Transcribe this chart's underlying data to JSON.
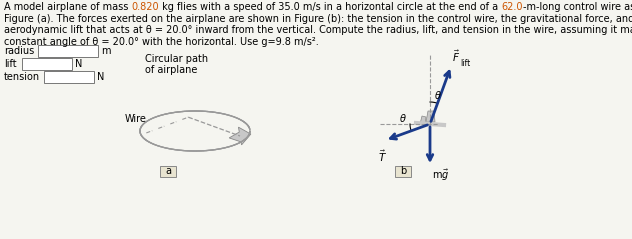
{
  "bg": "#f5f5f0",
  "text_color": "#000000",
  "highlight_color": "#cc5500",
  "arrow_color": "#1a3a8a",
  "dashed_color": "#999999",
  "gray_plane": "#b0b0b0",
  "box_fill": "#e8e4d0",
  "line1": "A model airplane of mass ",
  "h1": "0.820",
  "line1b": " kg flies with a speed of 35.0 m/s in a horizontal circle at the end of a ",
  "h2": "62.0",
  "line1c": "-m-long control wire as shown in",
  "line2": "Figure (a). The forces exerted on the airplane are shown in Figure (b): the tension in the control wire, the gravitational force, and",
  "line3": "aerodynamic lift that acts at θ = 20.0° inward from the vertical. Compute the radius, lift, and tension in the wire, assuming it makes a",
  "line4": "constant angle of θ = 20.0° with the horizontal. Use g=9.8 m/s².",
  "fs": 7.0
}
